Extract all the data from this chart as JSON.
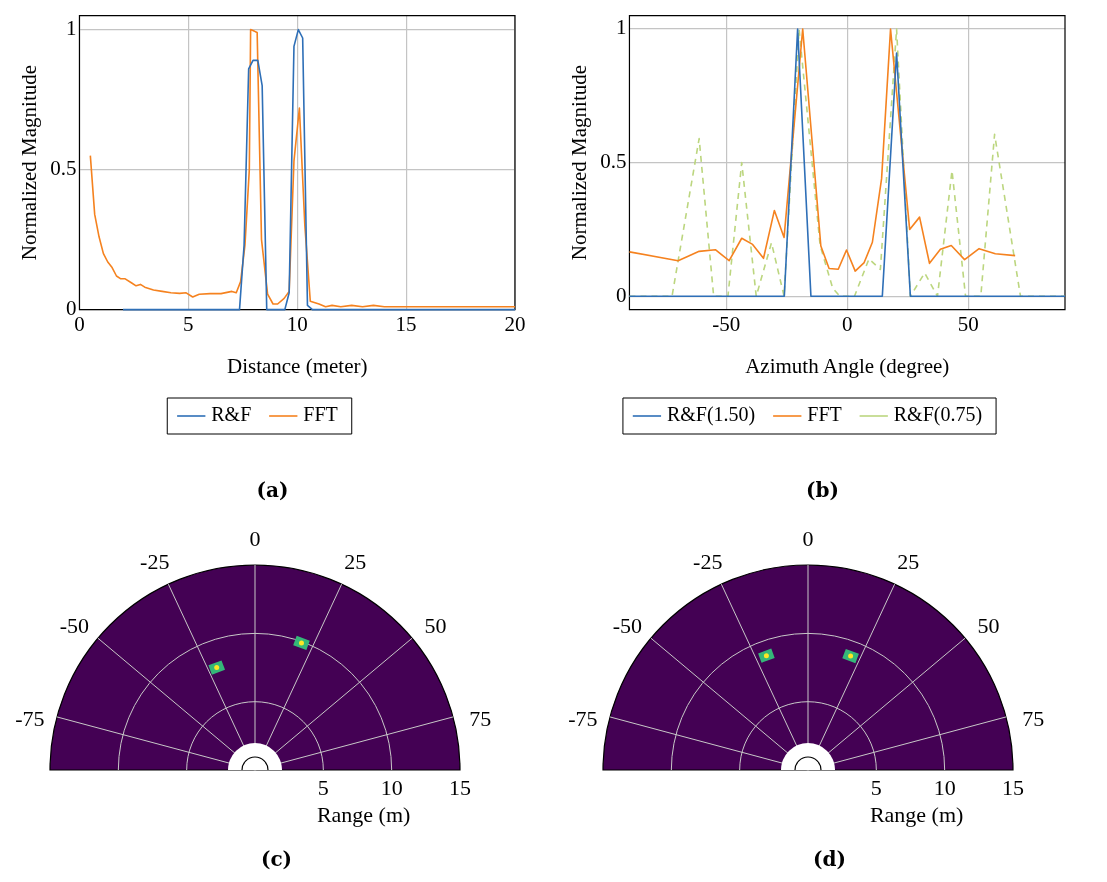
{
  "chart_data": [
    {
      "type": "line",
      "xlabel": "Distance (meter)",
      "ylabel": "Normalized Magnitude",
      "xlim": [
        0,
        20
      ],
      "xticks": [
        0,
        5,
        10,
        15,
        20
      ],
      "ylim": [
        0,
        1.05
      ],
      "yticks": [
        0,
        0.5,
        1
      ],
      "grid": true,
      "legend": "bottom",
      "marker": "none",
      "annotations": [
        "(a)"
      ],
      "series": [
        {
          "name": "R&F",
          "color": "#2e6fb7",
          "x": [
            2,
            7.35,
            7.56,
            7.77,
            7.97,
            8.19,
            8.39,
            8.6,
            9.43,
            9.63,
            9.85,
            10.05,
            10.25,
            10.47,
            10.7,
            20
          ],
          "values": [
            0,
            0,
            0.23,
            0.86,
            0.89,
            0.89,
            0.8,
            0,
            0,
            0.06,
            0.94,
            1,
            0.97,
            0.015,
            0,
            0
          ]
        },
        {
          "name": "FFT",
          "color": "#f5821f",
          "x": [
            0.5,
            0.7,
            0.9,
            1.1,
            1.3,
            1.5,
            1.7,
            1.9,
            2.1,
            2.4,
            2.6,
            2.8,
            3,
            3.4,
            3.8,
            4.2,
            4.6,
            4.9,
            5.2,
            5.5,
            6,
            6.5,
            7,
            7.2,
            7.4,
            7.6,
            7.8,
            7.86,
            8.16,
            8.36,
            8.64,
            8.89,
            9.1,
            9.4,
            9.63,
            9.85,
            10.1,
            10.35,
            10.6,
            11,
            11.3,
            11.6,
            12,
            12.5,
            13,
            13.5,
            14,
            15,
            16,
            17,
            18,
            19,
            20
          ],
          "values": [
            0.55,
            0.34,
            0.26,
            0.2,
            0.17,
            0.15,
            0.12,
            0.11,
            0.11,
            0.095,
            0.085,
            0.09,
            0.08,
            0.07,
            0.065,
            0.06,
            0.058,
            0.06,
            0.045,
            0.055,
            0.057,
            0.057,
            0.065,
            0.06,
            0.1,
            0.23,
            0.5,
            1,
            0.99,
            0.25,
            0.055,
            0.02,
            0.02,
            0.04,
            0.065,
            0.53,
            0.72,
            0.3,
            0.03,
            0.02,
            0.01,
            0.015,
            0.01,
            0.015,
            0.01,
            0.015,
            0.01,
            0.01,
            0.01,
            0.01,
            0.01,
            0.01,
            0.01
          ]
        }
      ]
    },
    {
      "type": "line",
      "xlabel": "Azimuth Angle (degree)",
      "ylabel": "Normalized Magnitude",
      "xlim": [
        -90,
        90
      ],
      "xticks": [
        -50,
        0,
        50
      ],
      "ylim": [
        -0.05,
        1.05
      ],
      "yticks": [
        0,
        0.5,
        1
      ],
      "grid": true,
      "legend": "bottom",
      "marker": "none",
      "annotations": [
        "(b)"
      ],
      "series": [
        {
          "name": "R&F(1.50)",
          "color": "#2e6fb7",
          "x": [
            -90,
            -26,
            -20.5,
            -15,
            14.5,
            20.4,
            26.1,
            90
          ],
          "values": [
            0,
            0,
            1,
            0,
            0,
            0.91,
            0,
            0
          ]
        },
        {
          "name": "FFT",
          "color": "#f5821f",
          "x": [
            -90,
            -69.9,
            -61.2,
            -54.5,
            -48.8,
            -43.6,
            -39.1,
            -34.6,
            -30.1,
            -26.1,
            -18.4,
            -10.9,
            -7.5,
            -3.7,
            -0.3,
            3.3,
            7,
            10.4,
            14.2,
            17.9,
            25.8,
            29.9,
            34,
            38.5,
            43,
            48.5,
            54.5,
            61.2,
            69.4
          ],
          "values": [
            0.166,
            0.133,
            0.168,
            0.174,
            0.133,
            0.217,
            0.194,
            0.142,
            0.321,
            0.22,
            1,
            0.188,
            0.104,
            0.101,
            0.173,
            0.094,
            0.126,
            0.202,
            0.44,
            1,
            0.25,
            0.296,
            0.123,
            0.176,
            0.19,
            0.137,
            0.178,
            0.159,
            0.152
          ]
        },
        {
          "name": "R&F(0.75)",
          "color": "#bcd67f",
          "line_style": "dashed",
          "x": [
            -90,
            -72.4,
            -61.2,
            -55.2,
            -49.3,
            -43.6,
            -37.6,
            -31.3,
            -26.1,
            -19.9,
            -11.2,
            -6,
            -3,
            3,
            9,
            13.7,
            20.4,
            26.1,
            32,
            37.3,
            43.3,
            48.9,
            55.2,
            60.9,
            71.6,
            90
          ],
          "values": [
            0,
            0,
            0.59,
            0,
            0,
            0.5,
            0,
            0.2,
            0,
            1,
            0.19,
            0.03,
            0,
            0,
            0.14,
            0.1,
            1,
            0,
            0.087,
            0,
            0.47,
            0,
            0,
            0.606,
            0,
            0
          ]
        }
      ]
    },
    {
      "type": "other",
      "xlabel": "Range (m)",
      "annotations": [
        "-75",
        "-50",
        "-25",
        "0",
        "25",
        "50",
        "75",
        "5",
        "10",
        "15",
        "(c)"
      ]
    },
    {
      "type": "other",
      "xlabel": "Range (m)",
      "annotations": [
        "-75",
        "-50",
        "-25",
        "0",
        "25",
        "50",
        "75",
        "5",
        "10",
        "15",
        "(d)"
      ]
    }
  ]
}
